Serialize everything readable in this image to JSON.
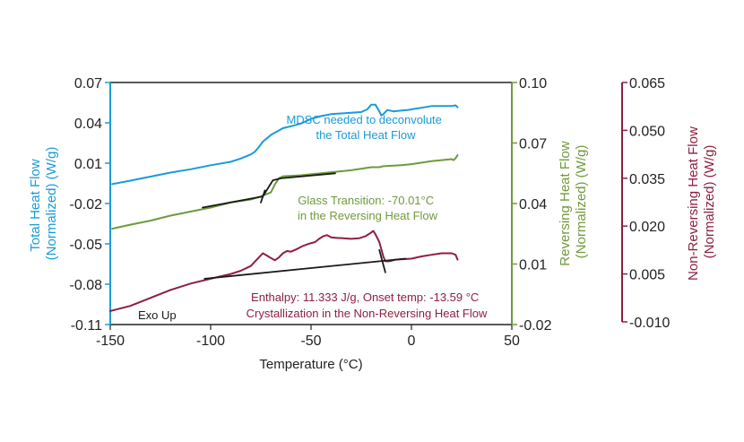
{
  "chart_data": {
    "type": "line",
    "xlabel": "Temperature (°C)",
    "xlim": [
      -150,
      50
    ],
    "x_ticks": [
      "-150",
      "-100",
      "-50",
      "0",
      "50"
    ],
    "colors": {
      "total": "#1a9bd7",
      "reversing": "#6f9a3b",
      "nonreversing": "#8e1f3f",
      "analysis": "#1a1a1a"
    },
    "axes": {
      "total": {
        "label_line1": "Total Heat Flow",
        "label_line2": "(Normalized) (W/g)",
        "ylim": [
          -0.11,
          0.07
        ],
        "ticks": [
          "0.07",
          "0.04",
          "0.01",
          "-0.02",
          "-0.05",
          "-0.08",
          "-0.11"
        ]
      },
      "reversing": {
        "label_line1": "Reversing Heat Flow",
        "label_line2": "(Normalized) (W/g)",
        "ylim": [
          -0.02,
          0.1
        ],
        "ticks": [
          "0.10",
          "0.07",
          "0.04",
          "0.01",
          "-0.02"
        ]
      },
      "nonreversing": {
        "label_line1": "Non-Reversing Heat Flow",
        "label_line2": "(Normalized) (W/g)",
        "ylim": [
          -0.01,
          0.065
        ],
        "ticks": [
          "0.065",
          "0.050",
          "0.035",
          "0.020",
          "0.005",
          "-0.010"
        ]
      }
    },
    "series": [
      {
        "axis": "total",
        "points": [
          [
            -149,
            -0.0055
          ],
          [
            -140,
            -0.003
          ],
          [
            -130,
            0
          ],
          [
            -120,
            0.003
          ],
          [
            -110,
            0.0055
          ],
          [
            -100,
            0.0085
          ],
          [
            -90,
            0.011
          ],
          [
            -85,
            0.0135
          ],
          [
            -80,
            0.0165
          ],
          [
            -78,
            0.0185
          ],
          [
            -76,
            0.022
          ],
          [
            -74,
            0.026
          ],
          [
            -72,
            0.0285
          ],
          [
            -70,
            0.031
          ],
          [
            -67,
            0.0335
          ],
          [
            -64,
            0.036
          ],
          [
            -60,
            0.0375
          ],
          [
            -55,
            0.0395
          ],
          [
            -50,
            0.043
          ],
          [
            -45,
            0.045
          ],
          [
            -40,
            0.0465
          ],
          [
            -35,
            0.047
          ],
          [
            -30,
            0.0475
          ],
          [
            -25,
            0.048
          ],
          [
            -22,
            0.05
          ],
          [
            -20,
            0.0535
          ],
          [
            -18,
            0.0535
          ],
          [
            -16,
            0.0485
          ],
          [
            -15,
            0.0455
          ],
          [
            -14,
            0.0465
          ],
          [
            -12,
            0.0495
          ],
          [
            -9,
            0.0485
          ],
          [
            -6,
            0.049
          ],
          [
            -2,
            0.0495
          ],
          [
            2,
            0.0505
          ],
          [
            6,
            0.0515
          ],
          [
            10,
            0.0525
          ],
          [
            15,
            0.0525
          ],
          [
            20,
            0.0525
          ],
          [
            22,
            0.053
          ],
          [
            23,
            0.0515
          ]
        ]
      },
      {
        "axis": "reversing",
        "points": [
          [
            -149,
            0.0275
          ],
          [
            -140,
            0.0295
          ],
          [
            -130,
            0.0315
          ],
          [
            -120,
            0.034
          ],
          [
            -110,
            0.036
          ],
          [
            -100,
            0.038
          ],
          [
            -90,
            0.0405
          ],
          [
            -80,
            0.042
          ],
          [
            -75,
            0.0435
          ],
          [
            -70,
            0.0455
          ],
          [
            -68,
            0.0495
          ],
          [
            -66,
            0.0525
          ],
          [
            -64,
            0.0535
          ],
          [
            -55,
            0.054
          ],
          [
            -50,
            0.0545
          ],
          [
            -45,
            0.055
          ],
          [
            -40,
            0.0555
          ],
          [
            -30,
            0.0565
          ],
          [
            -20,
            0.058
          ],
          [
            -16,
            0.058
          ],
          [
            -14,
            0.0585
          ],
          [
            -5,
            0.059
          ],
          [
            0,
            0.0595
          ],
          [
            10,
            0.061
          ],
          [
            20,
            0.062
          ],
          [
            21,
            0.0615
          ],
          [
            22,
            0.0625
          ],
          [
            23,
            0.064
          ]
        ]
      },
      {
        "axis": "nonreversing",
        "points": [
          [
            -150,
            -0.0066
          ],
          [
            -140,
            -0.005
          ],
          [
            -130,
            -0.0025
          ],
          [
            -120,
            0
          ],
          [
            -110,
            0.002
          ],
          [
            -100,
            0.0035
          ],
          [
            -90,
            0.005
          ],
          [
            -85,
            0.006
          ],
          [
            -80,
            0.0075
          ],
          [
            -77,
            0.0095
          ],
          [
            -74,
            0.0115
          ],
          [
            -72,
            0.0108
          ],
          [
            -70,
            0.01
          ],
          [
            -68,
            0.0093
          ],
          [
            -66,
            0.0102
          ],
          [
            -64,
            0.0115
          ],
          [
            -62,
            0.0122
          ],
          [
            -60,
            0.012
          ],
          [
            -57,
            0.0128
          ],
          [
            -54,
            0.0138
          ],
          [
            -51,
            0.0145
          ],
          [
            -48,
            0.015
          ],
          [
            -46,
            0.016
          ],
          [
            -44,
            0.0168
          ],
          [
            -42,
            0.0172
          ],
          [
            -40,
            0.0165
          ],
          [
            -37,
            0.0163
          ],
          [
            -34,
            0.0162
          ],
          [
            -30,
            0.016
          ],
          [
            -26,
            0.0162
          ],
          [
            -23,
            0.0168
          ],
          [
            -20,
            0.018
          ],
          [
            -19,
            0.0185
          ],
          [
            -18,
            0.0175
          ],
          [
            -16,
            0.015
          ],
          [
            -14,
            0.0105
          ],
          [
            -13,
            0.009
          ],
          [
            -11,
            0.009
          ],
          [
            -8,
            0.0095
          ],
          [
            0,
            0.0098
          ],
          [
            5,
            0.0105
          ],
          [
            10,
            0.011
          ],
          [
            15,
            0.0115
          ],
          [
            20,
            0.0115
          ],
          [
            22,
            0.011
          ],
          [
            23,
            0.0095
          ]
        ]
      }
    ],
    "analysis_lines": [
      {
        "axis": "reversing",
        "points": [
          [
            -104,
            0.038
          ],
          [
            -74,
            0.0435
          ]
        ]
      },
      {
        "axis": "reversing",
        "points": [
          [
            -74,
            0.0435
          ],
          [
            -69,
            0.0515
          ],
          [
            -65,
            0.0525
          ],
          [
            -38,
            0.055
          ]
        ]
      },
      {
        "axis": "reversing",
        "points": [
          [
            -75,
            0.0405
          ],
          [
            -73,
            0.0465
          ]
        ]
      },
      {
        "axis": "nonreversing",
        "points": [
          [
            -103,
            0.0035
          ],
          [
            -3,
            0.0098
          ]
        ]
      },
      {
        "axis": "nonreversing",
        "points": [
          [
            -16,
            0.0125
          ],
          [
            -13,
            0.0055
          ]
        ]
      }
    ],
    "annotations": [
      {
        "color": "total",
        "lines": [
          "MDSC needed to deconvolute",
          "the Total Heat Flow"
        ]
      },
      {
        "color": "reversing",
        "lines": [
          "Glass Transition: -70.01°C",
          "in the Reversing Heat Flow"
        ]
      },
      {
        "color": "nonreversing",
        "lines": [
          "Enthalpy: 11.333 J/g, Onset temp: -13.59 °C",
          "Crystallization in the Non-Reversing Heat Flow"
        ]
      },
      {
        "color": "analysis",
        "lines": [
          "Exo Up"
        ]
      }
    ]
  }
}
